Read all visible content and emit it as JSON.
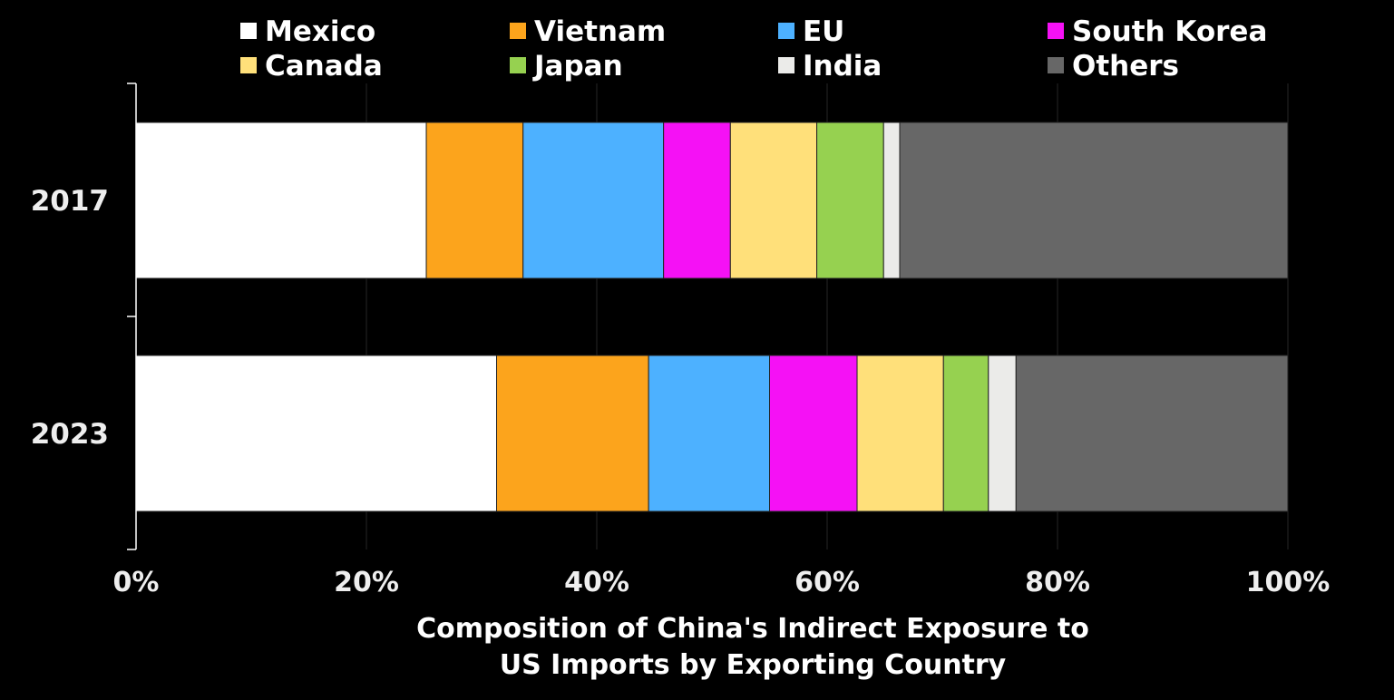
{
  "chart_data": {
    "type": "bar",
    "orientation": "horizontal",
    "stacked": true,
    "categories": [
      "2017",
      "2023"
    ],
    "series": [
      {
        "name": "Mexico",
        "color": "#ffffff",
        "values": [
          25.2,
          31.3
        ]
      },
      {
        "name": "Vietnam",
        "color": "#fca41c",
        "values": [
          8.4,
          13.2
        ]
      },
      {
        "name": "EU",
        "color": "#4db1ff",
        "values": [
          12.2,
          10.5
        ]
      },
      {
        "name": "South Korea",
        "color": "#f511f5",
        "values": [
          5.8,
          7.6
        ]
      },
      {
        "name": "Canada",
        "color": "#ffe07a",
        "values": [
          7.5,
          7.5
        ]
      },
      {
        "name": "Japan",
        "color": "#96d150",
        "values": [
          5.8,
          3.9
        ]
      },
      {
        "name": "India",
        "color": "#ebebe9",
        "values": [
          1.4,
          2.4
        ]
      },
      {
        "name": "Others",
        "color": "#676767",
        "values": [
          33.7,
          23.6
        ]
      }
    ],
    "xticks": [
      "0%",
      "20%",
      "40%",
      "60%",
      "80%",
      "100%"
    ],
    "xlim": [
      0,
      100
    ],
    "xlabel_lines": [
      "Composition of China's Indirect Exposure to",
      "US Imports by Exporting Country"
    ],
    "grid": true,
    "legend_position": "top"
  }
}
